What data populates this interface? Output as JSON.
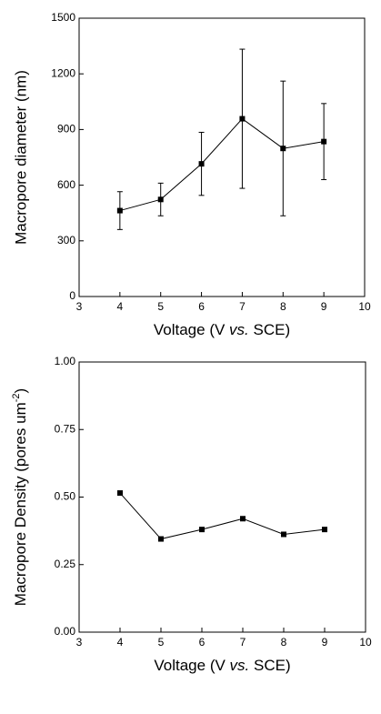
{
  "chart_data": [
    {
      "type": "line",
      "x_label": [
        "Voltage (V ",
        "vs.",
        " SCE)"
      ],
      "y_label": "Macropore diameter (nm)",
      "x": [
        4,
        5,
        6,
        7,
        8,
        9
      ],
      "series": [
        {
          "color": "#000000",
          "values": [
            463,
            523,
            715,
            958,
            798,
            835
          ],
          "errors": [
            102,
            88,
            170,
            375,
            363,
            205
          ]
        }
      ],
      "xlim": [
        3,
        10
      ],
      "xticks": [
        3,
        4,
        5,
        6,
        7,
        8,
        9,
        10
      ],
      "ylim": [
        0,
        1500
      ],
      "yticks": [
        0,
        300,
        600,
        900,
        1200,
        1500
      ]
    },
    {
      "type": "line",
      "x_label": [
        "Voltage (V ",
        "vs.",
        " SCE)"
      ],
      "y_label": [
        "Macropore Density (pores um",
        "-2",
        ")"
      ],
      "x": [
        4,
        5,
        6,
        7,
        8,
        9
      ],
      "series": [
        {
          "color": "#000000",
          "values": [
            0.515,
            0.345,
            0.38,
            0.42,
            0.362,
            0.38
          ]
        }
      ],
      "xlim": [
        3,
        10
      ],
      "xticks": [
        3,
        4,
        5,
        6,
        7,
        8,
        9,
        10
      ],
      "ylim": [
        0,
        1
      ],
      "yticks": [
        {
          "value": 0,
          "label": "0.00"
        },
        {
          "value": 0.25,
          "label": "0.25"
        },
        {
          "value": 0.5,
          "label": "0.50"
        },
        {
          "value": 0.75,
          "label": "0.75"
        },
        {
          "value": 1,
          "label": "1.00"
        }
      ]
    }
  ]
}
